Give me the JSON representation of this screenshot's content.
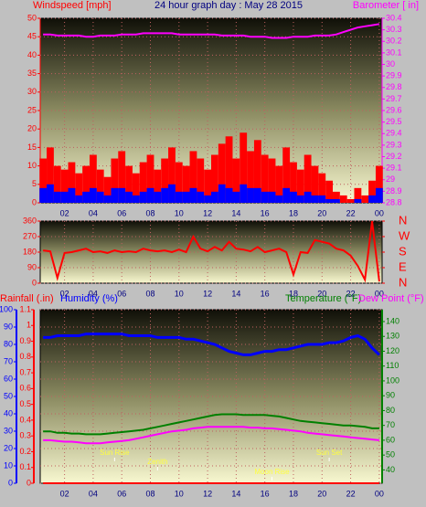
{
  "chart_data": [
    {
      "type": "line",
      "title": "24 hour graph day : May 28 2015",
      "ylabel": "Windspeed [mph]",
      "ycolor": "#ff0000",
      "y2label": "Barometer [ in]",
      "y2color": "#ff00ff",
      "x": [
        0.5,
        1,
        1.5,
        2,
        2.5,
        3,
        3.5,
        4,
        4.5,
        5,
        5.5,
        6,
        6.5,
        7,
        7.5,
        8,
        8.5,
        9,
        9.5,
        10,
        10.5,
        11,
        11.5,
        12,
        12.5,
        13,
        13.5,
        14,
        14.5,
        15,
        15.5,
        16,
        16.5,
        17,
        17.5,
        18,
        18.5,
        19,
        19.5,
        20,
        20.5,
        21,
        21.5,
        22,
        22.5,
        23,
        23.5,
        24
      ],
      "xlim": [
        0.3,
        24.2
      ],
      "xticks": [
        {
          "value": 2,
          "label": "02"
        },
        {
          "value": 4,
          "label": "04"
        },
        {
          "value": 6,
          "label": "06"
        },
        {
          "value": 8,
          "label": "08"
        },
        10,
        12,
        14,
        16,
        18,
        20,
        22,
        {
          "value": 24,
          "label": "00"
        }
      ],
      "ylim": [
        0,
        50
      ],
      "yticks": [
        0,
        5,
        10,
        15,
        20,
        25,
        30,
        35,
        40,
        45,
        50
      ],
      "y2lim": [
        28.8,
        30.4
      ],
      "y2ticks": [
        28.8,
        28.9,
        29,
        29.1,
        29.2,
        29.3,
        29.4,
        29.5,
        29.6,
        29.7,
        29.8,
        29.9,
        30,
        30.1,
        30.2,
        30.3,
        30.4
      ],
      "grid": true,
      "series": [
        {
          "type": "bar",
          "color": "#ff0000",
          "axis": "y",
          "values": [
            12,
            15,
            10,
            9,
            11,
            8,
            10,
            13,
            9,
            7,
            12,
            14,
            10,
            8,
            11,
            13,
            9,
            12,
            15,
            11,
            10,
            14,
            12,
            9,
            13,
            16,
            18,
            12,
            19,
            14,
            17,
            13,
            12,
            10,
            15,
            11,
            9,
            13,
            10,
            8,
            6,
            3,
            2,
            1,
            4,
            2,
            6,
            10
          ]
        },
        {
          "type": "bar",
          "color": "#0000ff",
          "axis": "y",
          "values": [
            4,
            5,
            3,
            3,
            4,
            2,
            3,
            4,
            3,
            2,
            4,
            4,
            3,
            2,
            3,
            4,
            3,
            4,
            5,
            3,
            3,
            4,
            3,
            2,
            3,
            5,
            4,
            3,
            5,
            4,
            4,
            3,
            3,
            2,
            4,
            3,
            2,
            3,
            2,
            2,
            1,
            1,
            0,
            0,
            1,
            0,
            2,
            4
          ]
        },
        {
          "type": "line",
          "color": "#ff00ff",
          "axis": "y2",
          "values": [
            30.26,
            30.26,
            30.25,
            30.25,
            30.25,
            30.25,
            30.24,
            30.24,
            30.25,
            30.25,
            30.25,
            30.26,
            30.26,
            30.26,
            30.27,
            30.27,
            30.27,
            30.27,
            30.27,
            30.26,
            30.26,
            30.26,
            30.26,
            30.26,
            30.26,
            30.25,
            30.25,
            30.25,
            30.25,
            30.24,
            30.24,
            30.24,
            30.23,
            30.23,
            30.23,
            30.24,
            30.24,
            30.24,
            30.25,
            30.25,
            30.25,
            30.26,
            30.28,
            30.3,
            30.32,
            30.33,
            30.34,
            30.35
          ]
        }
      ]
    },
    {
      "type": "line",
      "ycolor": "#ff0000",
      "y2color": "#ff0000",
      "x": [
        0.5,
        1,
        1.5,
        2,
        2.5,
        3,
        3.5,
        4,
        4.5,
        5,
        5.5,
        6,
        6.5,
        7,
        7.5,
        8,
        8.5,
        9,
        9.5,
        10,
        10.5,
        11,
        11.5,
        12,
        12.5,
        13,
        13.5,
        14,
        14.5,
        15,
        15.5,
        16,
        16.5,
        17,
        17.5,
        18,
        18.5,
        19,
        19.5,
        20,
        20.5,
        21,
        21.5,
        22,
        22.5,
        23,
        23.5,
        24
      ],
      "xlim": [
        0.3,
        24.2
      ],
      "xticks": [
        {
          "value": 2,
          "label": "02"
        },
        {
          "value": 4,
          "label": "04"
        },
        {
          "value": 6,
          "label": "06"
        },
        {
          "value": 8,
          "label": "08"
        },
        10,
        12,
        14,
        16,
        18,
        20,
        22,
        {
          "value": 24,
          "label": "00"
        }
      ],
      "ylim": [
        0,
        360
      ],
      "yticks": [
        0,
        90,
        180,
        270,
        360
      ],
      "y2lim": [
        0,
        360
      ],
      "y2ticks": [
        {
          "value": 0,
          "label": "N"
        },
        {
          "value": 90,
          "label": "E"
        },
        {
          "value": 180,
          "label": "S"
        },
        {
          "value": 270,
          "label": "W"
        },
        {
          "value": 360,
          "label": "N"
        }
      ],
      "grid": true,
      "series": [
        {
          "type": "line",
          "color": "#ff0000",
          "axis": "y",
          "values": [
            190,
            185,
            30,
            175,
            180,
            190,
            200,
            180,
            185,
            175,
            190,
            180,
            185,
            180,
            200,
            190,
            185,
            190,
            180,
            195,
            180,
            270,
            200,
            185,
            210,
            190,
            240,
            200,
            195,
            185,
            210,
            180,
            190,
            200,
            180,
            50,
            180,
            175,
            250,
            240,
            230,
            200,
            190,
            160,
            100,
            20,
            360,
            10
          ]
        }
      ]
    },
    {
      "type": "line",
      "ycolor": "#0000ff",
      "y2color": "#008000",
      "y3color": "#ff0000",
      "x": [
        0.5,
        1,
        1.5,
        2,
        2.5,
        3,
        3.5,
        4,
        4.5,
        5,
        5.5,
        6,
        6.5,
        7,
        7.5,
        8,
        8.5,
        9,
        9.5,
        10,
        10.5,
        11,
        11.5,
        12,
        12.5,
        13,
        13.5,
        14,
        14.5,
        15,
        15.5,
        16,
        16.5,
        17,
        17.5,
        18,
        18.5,
        19,
        19.5,
        20,
        20.5,
        21,
        21.5,
        22,
        22.5,
        23,
        23.5,
        24
      ],
      "xlim": [
        0.3,
        24.2
      ],
      "xticks": [
        {
          "value": 2,
          "label": "02"
        },
        {
          "value": 4,
          "label": "04"
        },
        {
          "value": 6,
          "label": "06"
        },
        {
          "value": 8,
          "label": "08"
        },
        10,
        12,
        14,
        16,
        18,
        20,
        22,
        {
          "value": 24,
          "label": "00"
        }
      ],
      "ylim": [
        0,
        100
      ],
      "yticks": [
        0,
        10,
        20,
        30,
        40,
        50,
        60,
        70,
        80,
        90,
        100
      ],
      "y2lim": [
        31,
        148
      ],
      "y2ticks": [
        40,
        50,
        60,
        70,
        80,
        90,
        100,
        110,
        120,
        130,
        140
      ],
      "y3lim": [
        0,
        1.1
      ],
      "y3ticks": [
        0,
        0.1,
        0.2,
        0.3,
        0.4,
        0.5,
        0.6,
        0.7,
        0.8,
        0.9,
        1,
        1.1
      ],
      "grid": true,
      "series": [
        {
          "name": "Rainfall (.in)",
          "type": "line",
          "color": "#ff0000",
          "axis": "y3",
          "values": [
            0,
            0,
            0,
            0,
            0,
            0,
            0,
            0,
            0,
            0,
            0,
            0,
            0,
            0,
            0,
            0,
            0,
            0,
            0,
            0,
            0,
            0,
            0,
            0,
            0,
            0,
            0,
            0,
            0,
            0,
            0,
            0,
            0,
            0,
            0,
            0,
            0,
            0,
            0,
            0,
            0,
            0,
            0,
            0,
            0,
            0,
            0,
            0
          ]
        },
        {
          "name": "Humidity (%)",
          "type": "line",
          "color": "#0000ff",
          "axis": "y",
          "values": [
            84,
            84,
            85,
            85,
            85,
            85,
            86,
            86,
            86,
            86,
            86,
            86,
            85,
            85,
            85,
            85,
            84,
            84,
            84,
            84,
            83,
            83,
            82,
            81,
            80,
            78,
            76,
            75,
            74,
            74,
            75,
            76,
            76,
            77,
            77,
            78,
            79,
            80,
            80,
            80,
            81,
            81,
            82,
            84,
            85,
            83,
            78,
            74
          ]
        },
        {
          "name": "Temperature (°F)",
          "type": "line",
          "color": "#008000",
          "axis": "y2",
          "values": [
            66,
            66,
            65,
            65,
            64.5,
            64.5,
            64,
            64,
            64,
            64.5,
            65,
            65.5,
            66,
            66.5,
            67,
            68,
            69,
            70,
            71,
            72,
            73,
            74,
            75,
            76,
            77,
            77.5,
            77.5,
            77.5,
            77,
            77,
            77,
            77,
            76.5,
            76,
            75,
            74,
            73,
            72.5,
            72,
            71.5,
            71,
            70.5,
            70,
            70,
            69.5,
            69,
            68,
            68
          ]
        },
        {
          "name": "Dew Point (°F)",
          "type": "line",
          "color": "#ff00ff",
          "axis": "y2",
          "values": [
            60,
            60,
            59.5,
            59,
            59,
            58.5,
            58,
            58,
            58,
            58.5,
            59,
            59.5,
            60,
            61,
            62,
            63,
            64,
            65,
            66,
            66.5,
            67,
            68,
            68.5,
            69,
            69,
            69,
            69,
            69,
            69,
            68.5,
            68.5,
            68,
            68,
            67.5,
            67,
            66.5,
            66,
            65,
            64.5,
            64,
            63.5,
            63,
            62.5,
            62,
            61.5,
            61,
            60.5,
            60
          ]
        }
      ],
      "annotations": [
        {
          "text": "Sun Rise",
          "x": 5.5
        },
        {
          "text": "Zenith",
          "x": 8.5
        },
        {
          "text": "Moon Rise",
          "x": 16.5
        },
        {
          "text": "Sun Set",
          "x": 20.5
        }
      ]
    }
  ]
}
